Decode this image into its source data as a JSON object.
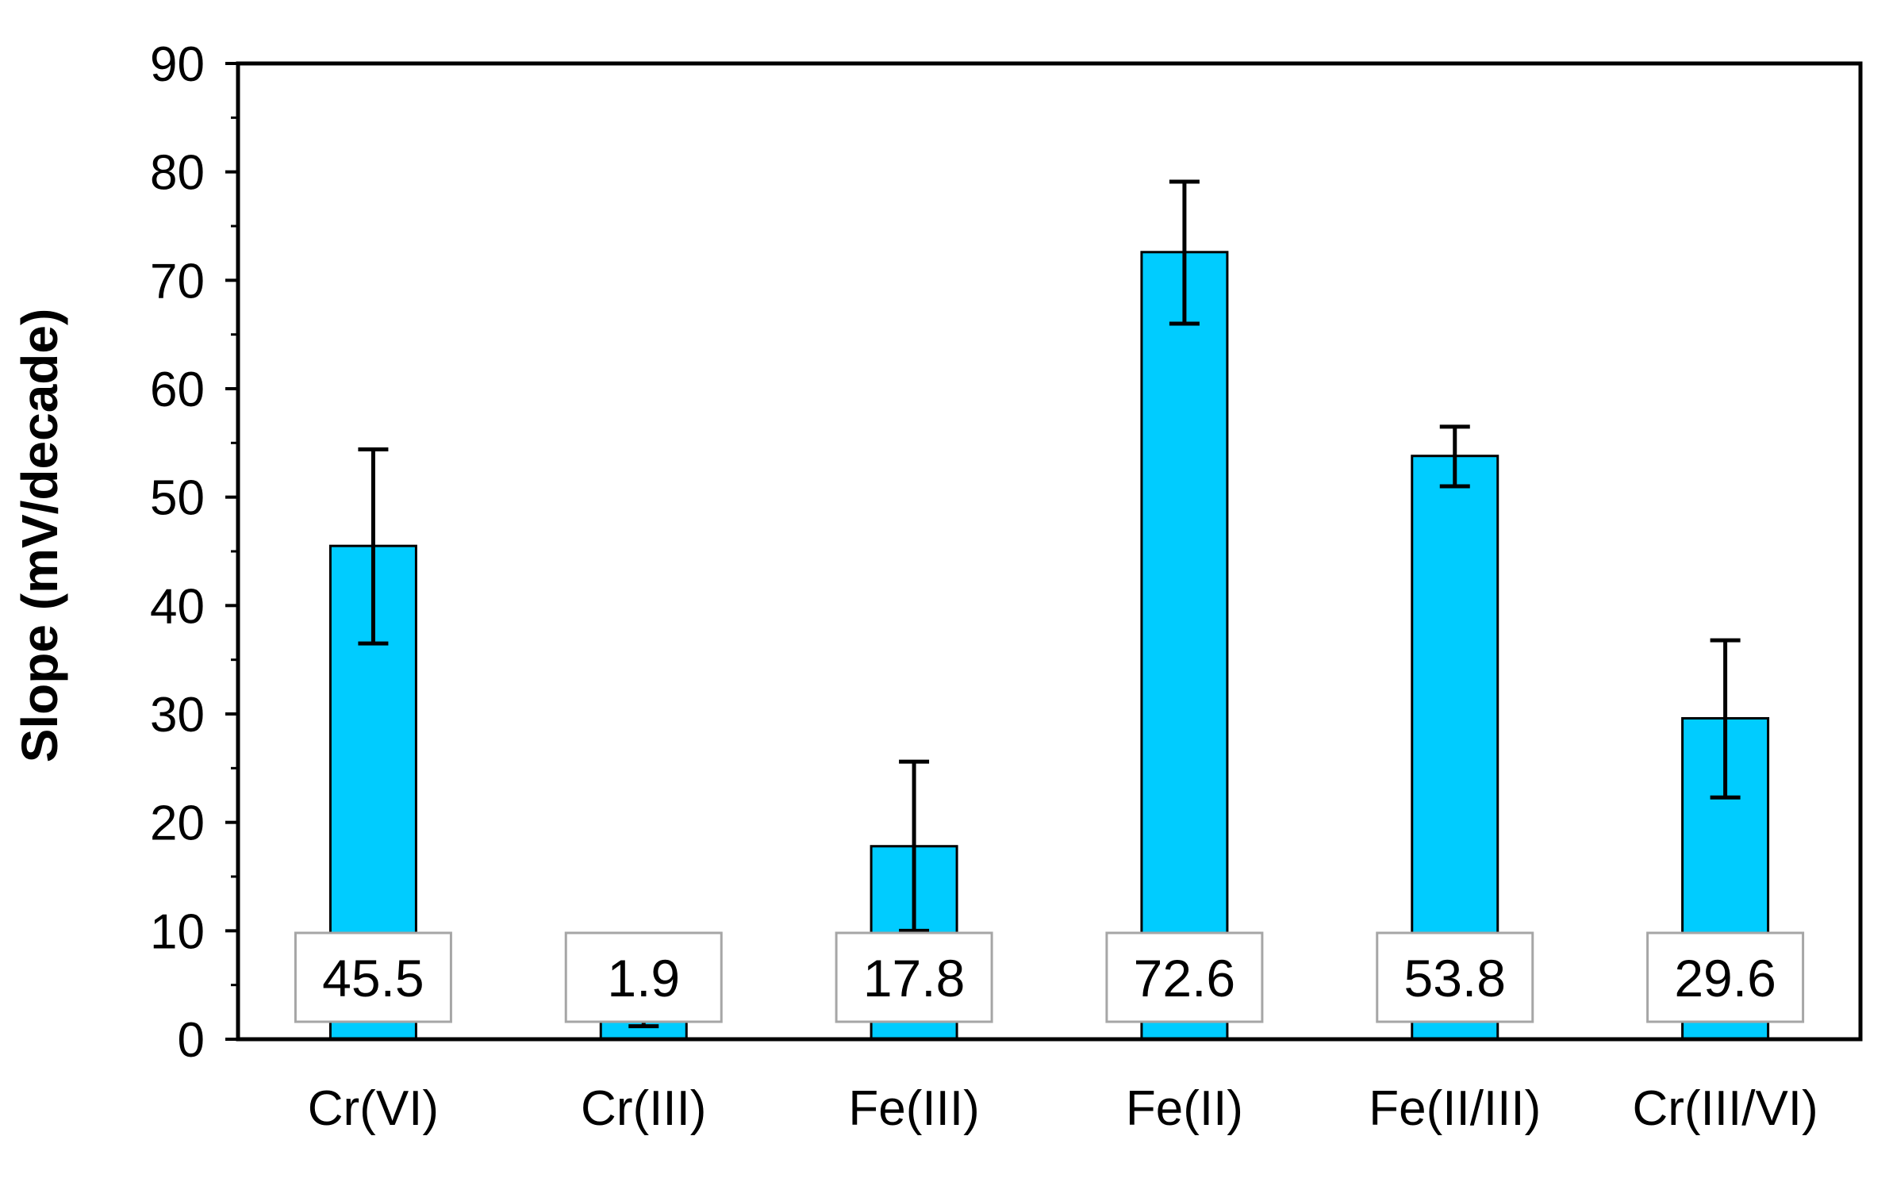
{
  "chart_data": {
    "type": "bar",
    "title": "",
    "xlabel": "",
    "ylabel": "Slope (mV/decade)",
    "ylim": [
      0,
      90
    ],
    "yticks": [
      0,
      10,
      20,
      30,
      40,
      50,
      60,
      70,
      80,
      90
    ],
    "ytick_labels": [
      "0",
      "10",
      "20",
      "30",
      "40",
      "50",
      "60",
      "70",
      "80",
      "90"
    ],
    "grid": false,
    "legend": "none",
    "categories": [
      "Cr(VI)",
      "Cr(III)",
      "Fe(III)",
      "Fe(II)",
      "Fe(II/III)",
      "Cr(III/VI)"
    ],
    "values": [
      45.5,
      1.9,
      17.8,
      72.6,
      53.8,
      29.6
    ],
    "value_labels": [
      "45.5",
      "1.9",
      "17.8",
      "72.6",
      "53.8",
      "29.6"
    ],
    "error_low": [
      36.5,
      1.2,
      10.0,
      66.0,
      51.0,
      22.3
    ],
    "error_high": [
      54.4,
      2.6,
      25.6,
      79.1,
      56.5,
      36.8
    ],
    "bar_color": "#00CCFF",
    "bar_edge_color": "#000000",
    "label_box_color": "#FFFFFF",
    "label_box_edge_color": "#A6A6A6"
  }
}
